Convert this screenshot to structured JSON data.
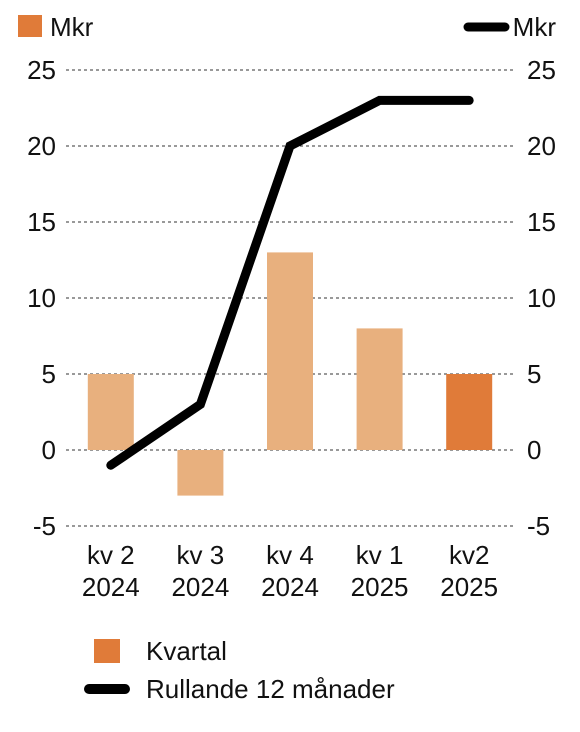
{
  "chart_data": {
    "type": "bar",
    "categories": [
      {
        "line1": "kv 2",
        "line2": "2024"
      },
      {
        "line1": "kv 3",
        "line2": "2024"
      },
      {
        "line1": "kv 4",
        "line2": "2024"
      },
      {
        "line1": "kv 1",
        "line2": "2025"
      },
      {
        "line1": "kv2",
        "line2": "2025"
      }
    ],
    "series": [
      {
        "name": "Kvartal",
        "type": "bar",
        "values": [
          5,
          -3,
          13,
          8,
          5
        ],
        "color": "#e8b07e",
        "highlight_color": "#e07b39",
        "highlight_index": 4
      },
      {
        "name": "Rullande 12 månader",
        "type": "line",
        "values": [
          -1,
          3,
          20,
          23,
          23
        ],
        "color": "#000000"
      }
    ],
    "left_axis": {
      "unit": "Mkr",
      "ticks": [
        25,
        20,
        15,
        10,
        5,
        0,
        -5
      ]
    },
    "right_axis": {
      "unit": "Mkr",
      "ticks": [
        25,
        20,
        15,
        10,
        5,
        0,
        -5
      ]
    },
    "ylim": [
      -5,
      25
    ],
    "grid": true
  },
  "legend": {
    "bar_label": "Kvartal",
    "line_label": "Rullande 12 månader"
  }
}
